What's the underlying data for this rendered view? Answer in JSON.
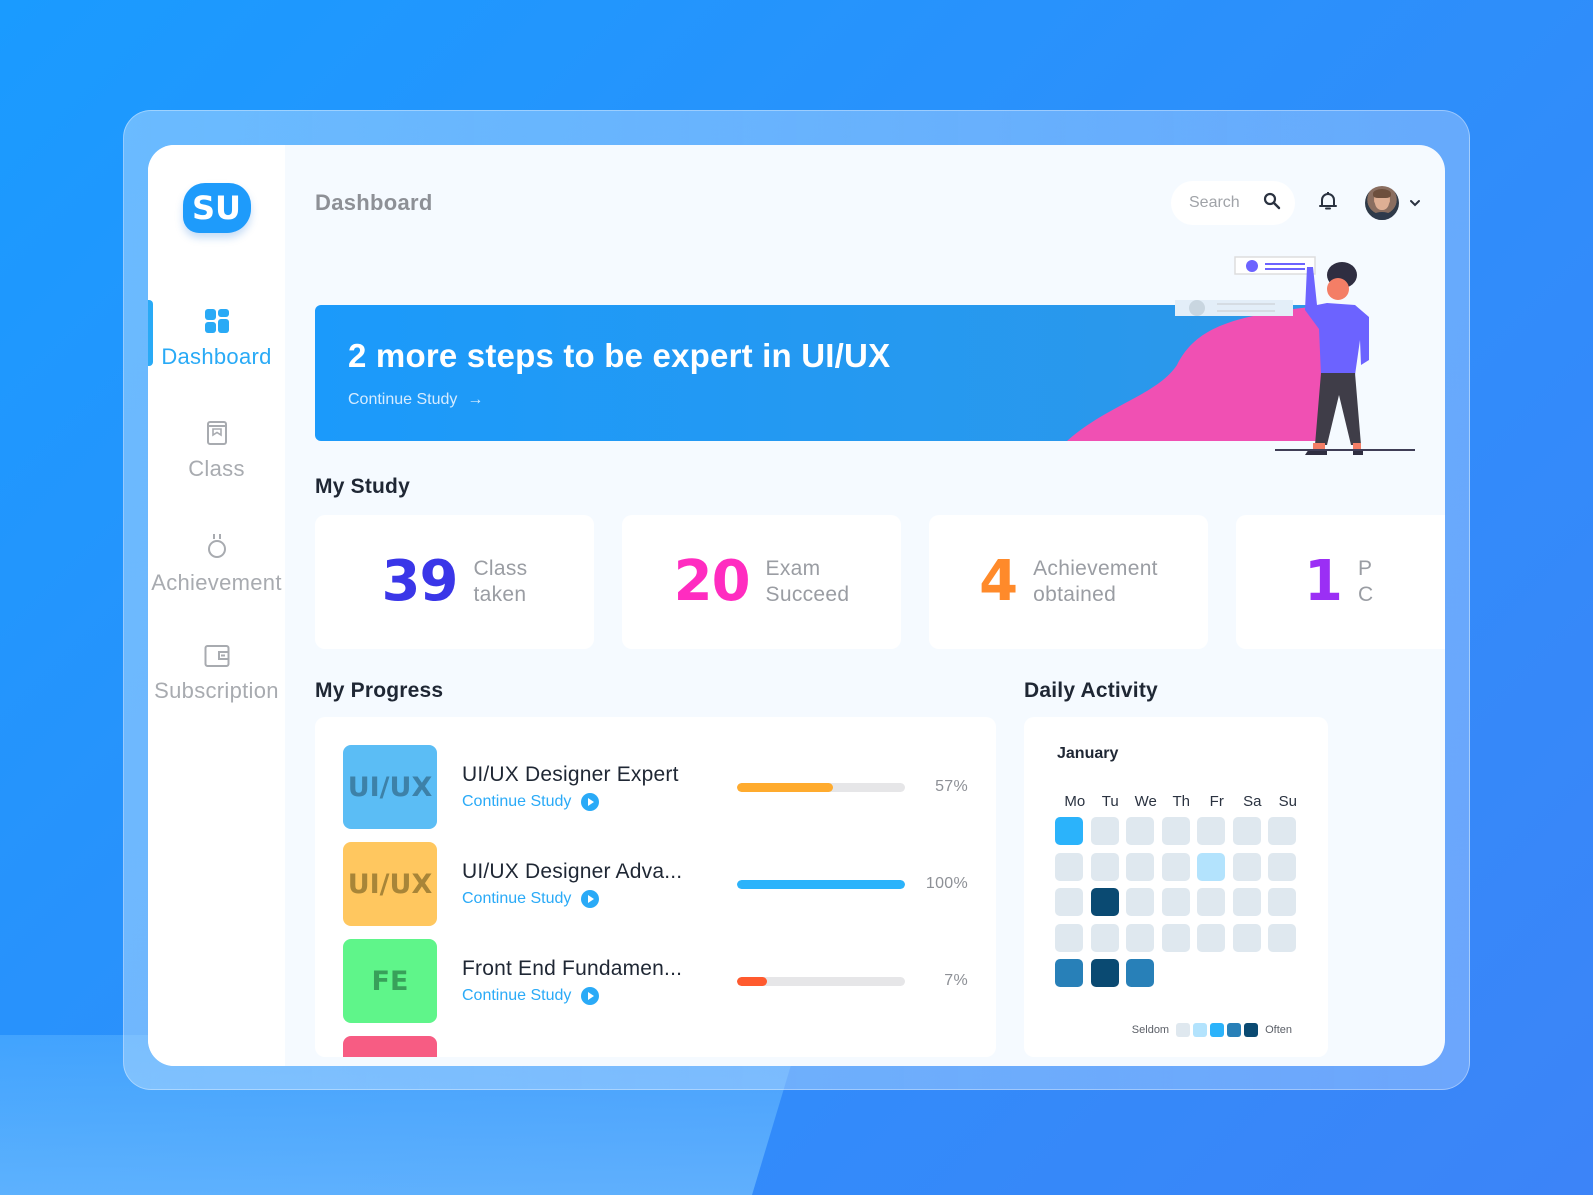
{
  "app": {
    "logo_text": "SU",
    "page_title": "Dashboard"
  },
  "sidebar": {
    "items": [
      {
        "label": "Dashboard",
        "icon": "grid-icon",
        "active": true
      },
      {
        "label": "Class",
        "icon": "book-icon",
        "active": false
      },
      {
        "label": "Achievement",
        "icon": "medal-icon",
        "active": false
      },
      {
        "label": "Subscription",
        "icon": "wallet-icon",
        "active": false
      }
    ]
  },
  "header": {
    "search_placeholder": "Search",
    "search_icon": "search-icon",
    "notification_icon": "bell-icon",
    "avatar_icon": "user-avatar",
    "menu_icon": "chevron-down-icon"
  },
  "banner": {
    "title": "2 more steps to be expert in UI/UX",
    "link_label": "Continue Study",
    "link_arrow": "→"
  },
  "my_study": {
    "heading_bold": "My",
    "heading_rest": " Study",
    "stats": [
      {
        "value": "39",
        "line1": "Class",
        "line2": "taken",
        "color": "#3a36e8"
      },
      {
        "value": "20",
        "line1": "Exam",
        "line2": "Succeed",
        "color": "#ff2cc0"
      },
      {
        "value": "4",
        "line1": "Achievement",
        "line2": "obtained",
        "color": "#ff8a2a"
      },
      {
        "value": "1",
        "line1": "P",
        "line2": "C",
        "color": "#9b2ff5"
      }
    ]
  },
  "my_progress": {
    "heading_bold": "My",
    "heading_rest": " Progress",
    "courses": [
      {
        "thumb": "UI/UX",
        "thumb_bg": "#5bbdf5",
        "thumb_fg": "#3d81a8",
        "title": "UI/UX Designer Expert",
        "link": "Continue Study",
        "progress": 57,
        "progress_label": "57%",
        "bar_color": "#ffab2e"
      },
      {
        "thumb": "UI/UX",
        "thumb_bg": "#ffc75f",
        "thumb_fg": "#a88538",
        "title": "UI/UX Designer Adva...",
        "link": "Continue Study",
        "progress": 100,
        "progress_label": "100%",
        "bar_color": "#2bb3fb"
      },
      {
        "thumb": "FE",
        "thumb_bg": "#5ff58a",
        "thumb_fg": "#38a05a",
        "title": "Front End Fundamen...",
        "link": "Continue Study",
        "progress": 7,
        "progress_label": "7%",
        "bar_color": "#ff5a2e"
      },
      {
        "thumb": "",
        "thumb_bg": "#f75c83",
        "thumb_fg": "#a03a55",
        "title": "",
        "link": "",
        "progress": 0,
        "progress_label": "",
        "bar_color": "#ff5a2e"
      }
    ]
  },
  "daily_activity": {
    "heading_bold": "Daily",
    "heading_rest": " Activity",
    "month": "January",
    "weekdays": [
      "Mo",
      "Tu",
      "We",
      "Th",
      "Fr",
      "Sa",
      "Su"
    ],
    "levels": [
      [
        2,
        0,
        0,
        0,
        0,
        0,
        0
      ],
      [
        0,
        0,
        0,
        0,
        1,
        0,
        0
      ],
      [
        0,
        4,
        0,
        0,
        0,
        0,
        0
      ],
      [
        0,
        0,
        0,
        0,
        0,
        0,
        0
      ],
      [
        3,
        4,
        3
      ]
    ],
    "level_colors": [
      "#dfe8ef",
      "#b3e3fd",
      "#2bb3fb",
      "#2880b8",
      "#0a4a72"
    ],
    "legend_low": "Seldom",
    "legend_high": "Often"
  }
}
